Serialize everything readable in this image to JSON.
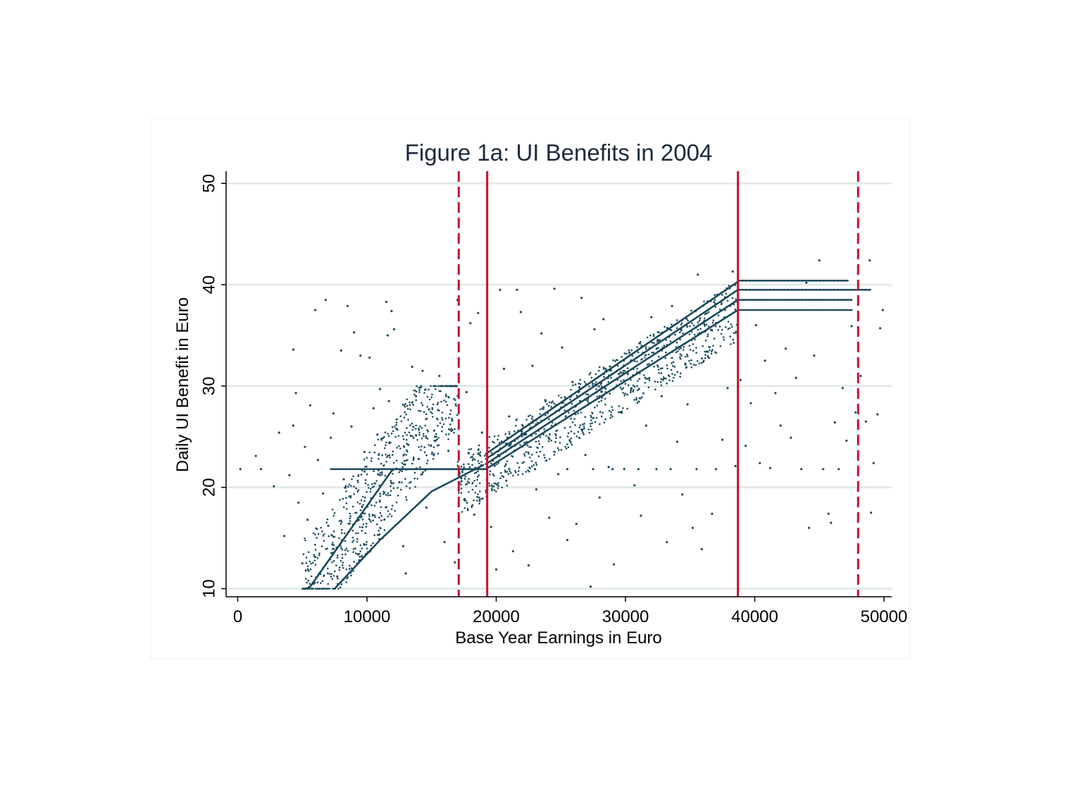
{
  "chart_data": {
    "type": "scatter",
    "title": "Figure 1a: UI Benefits in 2004",
    "xlabel": "Base Year Earnings in Euro",
    "ylabel": "Daily UI Benefit in Euro",
    "xlim": [
      -900,
      50600
    ],
    "ylim": [
      9.2,
      51.2
    ],
    "x_ticks": [
      0,
      10000,
      20000,
      30000,
      40000,
      50000
    ],
    "x_tick_labels": [
      "0",
      "10000",
      "20000",
      "30000",
      "40000",
      "50000"
    ],
    "y_ticks": [
      10,
      20,
      30,
      40,
      50
    ],
    "y_tick_labels": [
      "10",
      "20",
      "30",
      "40",
      "50"
    ],
    "grid": "horizontal",
    "legend": "none",
    "colors": {
      "points": "#1a4a5c",
      "grid": "#e3ebea",
      "reference_line": "#c8102e",
      "title": "#1c2a3c"
    },
    "series": [
      {
        "trend_segments": [
          {
            "x": [
              5500,
              12000
            ],
            "y": [
              10.0,
              21.8
            ]
          },
          {
            "x": [
              12000,
              19200
            ],
            "y": [
              21.8,
              21.8
            ]
          },
          {
            "x": [
              7500,
              11000,
              15000,
              19000
            ],
            "y": [
              10.0,
              14.8,
              19.6,
              22.2
            ]
          },
          {
            "x": [
              19200,
              38700
            ],
            "y": [
              21.8,
              37.5
            ]
          },
          {
            "x": [
              19200,
              38700
            ],
            "y": [
              22.3,
              38.5
            ]
          },
          {
            "x": [
              19200,
              38700
            ],
            "y": [
              22.8,
              39.5
            ]
          },
          {
            "x": [
              19200,
              38700
            ],
            "y": [
              23.3,
              40.3
            ]
          },
          {
            "x": [
              38700,
              47500
            ],
            "y": [
              37.5,
              37.5
            ]
          },
          {
            "x": [
              38700,
              47500
            ],
            "y": [
              38.5,
              38.5
            ]
          },
          {
            "x": [
              38700,
              49000
            ],
            "y": [
              39.5,
              39.5
            ]
          },
          {
            "x": [
              38700,
              47200
            ],
            "y": [
              40.4,
              40.4
            ]
          },
          {
            "x": [
              7200,
              19000
            ],
            "y": [
              21.8,
              21.8
            ]
          }
        ],
        "points": [
          [
            200,
            21.8
          ],
          [
            1400,
            23.1
          ],
          [
            1800,
            21.8
          ],
          [
            2800,
            20.1
          ],
          [
            3200,
            25.4
          ],
          [
            3600,
            15.2
          ],
          [
            4000,
            21.2
          ],
          [
            4300,
            33.6
          ],
          [
            4300,
            26.1
          ],
          [
            4500,
            29.3
          ],
          [
            4700,
            18.5
          ],
          [
            5000,
            12.5
          ],
          [
            5200,
            24.0
          ],
          [
            5400,
            16.8
          ],
          [
            5600,
            28.1
          ],
          [
            6000,
            37.5
          ],
          [
            6200,
            22.7
          ],
          [
            6600,
            19.4
          ],
          [
            6800,
            38.5
          ],
          [
            7000,
            16.2
          ],
          [
            7200,
            24.9
          ],
          [
            7400,
            27.3
          ],
          [
            7700,
            11.2
          ],
          [
            8000,
            33.5
          ],
          [
            8200,
            20.8
          ],
          [
            8500,
            37.9
          ],
          [
            8800,
            26.0
          ],
          [
            9000,
            35.3
          ],
          [
            9300,
            13.4
          ],
          [
            9500,
            33.0
          ],
          [
            9800,
            23.5
          ],
          [
            10000,
            18.1
          ],
          [
            10200,
            32.8
          ],
          [
            10500,
            27.8
          ],
          [
            10800,
            25.2
          ],
          [
            11000,
            29.7
          ],
          [
            11200,
            15.0
          ],
          [
            11500,
            38.3
          ],
          [
            11600,
            35.0
          ],
          [
            11700,
            28.5
          ],
          [
            11900,
            37.4
          ],
          [
            12100,
            35.6
          ],
          [
            12300,
            26.7
          ],
          [
            12500,
            20.5
          ],
          [
            12800,
            14.2
          ],
          [
            13000,
            11.5
          ],
          [
            13200,
            24.2
          ],
          [
            13500,
            31.9
          ],
          [
            13800,
            29.0
          ],
          [
            14000,
            22.8
          ],
          [
            14300,
            31.5
          ],
          [
            14600,
            18.0
          ],
          [
            14800,
            27.7
          ],
          [
            15200,
            25.6
          ],
          [
            15600,
            31.0
          ],
          [
            16000,
            14.6
          ],
          [
            16300,
            23.6
          ],
          [
            16600,
            26.6
          ],
          [
            16800,
            12.6
          ],
          [
            17000,
            38.5
          ],
          [
            17300,
            20.9
          ],
          [
            17700,
            29.4
          ],
          [
            18000,
            36.2
          ],
          [
            18300,
            17.3
          ],
          [
            18600,
            37.2
          ],
          [
            18900,
            25.4
          ],
          [
            19300,
            29.9
          ],
          [
            19600,
            16.1
          ],
          [
            20000,
            11.9
          ],
          [
            20300,
            39.5
          ],
          [
            20600,
            31.7
          ],
          [
            21000,
            27.0
          ],
          [
            21300,
            13.7
          ],
          [
            21600,
            39.5
          ],
          [
            21900,
            37.3
          ],
          [
            22200,
            24.4
          ],
          [
            22500,
            12.3
          ],
          [
            22800,
            32.0
          ],
          [
            23100,
            19.8
          ],
          [
            23500,
            35.2
          ],
          [
            23800,
            28.6
          ],
          [
            24100,
            17.0
          ],
          [
            24500,
            39.6
          ],
          [
            24800,
            21.3
          ],
          [
            25100,
            33.8
          ],
          [
            25500,
            14.8
          ],
          [
            25900,
            30.4
          ],
          [
            26200,
            16.4
          ],
          [
            26600,
            38.7
          ],
          [
            26900,
            23.2
          ],
          [
            27300,
            10.2
          ],
          [
            27600,
            35.6
          ],
          [
            28000,
            19.0
          ],
          [
            28300,
            36.6
          ],
          [
            28700,
            22.0
          ],
          [
            29100,
            12.4
          ],
          [
            29500,
            31.2
          ],
          [
            29900,
            21.8
          ],
          [
            30300,
            33.3
          ],
          [
            30700,
            20.2
          ],
          [
            31200,
            17.2
          ],
          [
            31600,
            26.1
          ],
          [
            32000,
            36.8
          ],
          [
            32400,
            21.8
          ],
          [
            32800,
            29.0
          ],
          [
            33200,
            14.6
          ],
          [
            33600,
            37.9
          ],
          [
            34000,
            24.5
          ],
          [
            34400,
            19.3
          ],
          [
            34800,
            28.2
          ],
          [
            35200,
            16.0
          ],
          [
            35600,
            41.0
          ],
          [
            35900,
            13.9
          ],
          [
            36300,
            33.4
          ],
          [
            36700,
            17.4
          ],
          [
            37100,
            39.0
          ],
          [
            37500,
            24.7
          ],
          [
            37900,
            29.8
          ],
          [
            38300,
            41.3
          ],
          [
            38500,
            22.1
          ],
          [
            38900,
            30.6
          ],
          [
            39300,
            24.1
          ],
          [
            39700,
            28.3
          ],
          [
            40100,
            36.0
          ],
          [
            40400,
            22.4
          ],
          [
            40800,
            32.5
          ],
          [
            41200,
            21.9
          ],
          [
            41600,
            29.3
          ],
          [
            42000,
            26.1
          ],
          [
            42400,
            33.7
          ],
          [
            42800,
            24.9
          ],
          [
            43200,
            30.8
          ],
          [
            43600,
            21.8
          ],
          [
            44000,
            40.2
          ],
          [
            44200,
            16.0
          ],
          [
            44600,
            33.0
          ],
          [
            45000,
            42.4
          ],
          [
            45300,
            21.8
          ],
          [
            45700,
            17.4
          ],
          [
            45900,
            16.5
          ],
          [
            46200,
            26.4
          ],
          [
            46500,
            21.8
          ],
          [
            46800,
            29.8
          ],
          [
            47100,
            24.6
          ],
          [
            47500,
            35.9
          ],
          [
            47800,
            27.4
          ],
          [
            48200,
            31.0
          ],
          [
            48600,
            26.5
          ],
          [
            48900,
            42.4
          ],
          [
            49000,
            17.5
          ],
          [
            49200,
            22.4
          ],
          [
            49500,
            27.2
          ],
          [
            49700,
            35.7
          ],
          [
            49900,
            37.5
          ],
          [
            18500,
            21.8
          ],
          [
            21000,
            21.8
          ],
          [
            23000,
            21.8
          ],
          [
            25500,
            21.8
          ],
          [
            27500,
            21.8
          ],
          [
            29000,
            21.8
          ],
          [
            31000,
            21.8
          ],
          [
            33500,
            21.8
          ],
          [
            35500,
            21.8
          ],
          [
            37000,
            21.8
          ]
        ],
        "background_points": [
          {
            "x_range": [
              5000,
              17000
            ],
            "y_range": [
              10,
              30
            ],
            "count": 700,
            "seed": 11
          },
          {
            "x_range": [
              17000,
              38700
            ],
            "y_range": [
              20,
              36
            ],
            "count": 900,
            "seed": 23
          }
        ]
      }
    ],
    "reference_lines": [
      {
        "x": 17100,
        "style": "dashed"
      },
      {
        "x": 19300,
        "style": "solid"
      },
      {
        "x": 38700,
        "style": "solid"
      },
      {
        "x": 48000,
        "style": "dashed"
      }
    ]
  }
}
